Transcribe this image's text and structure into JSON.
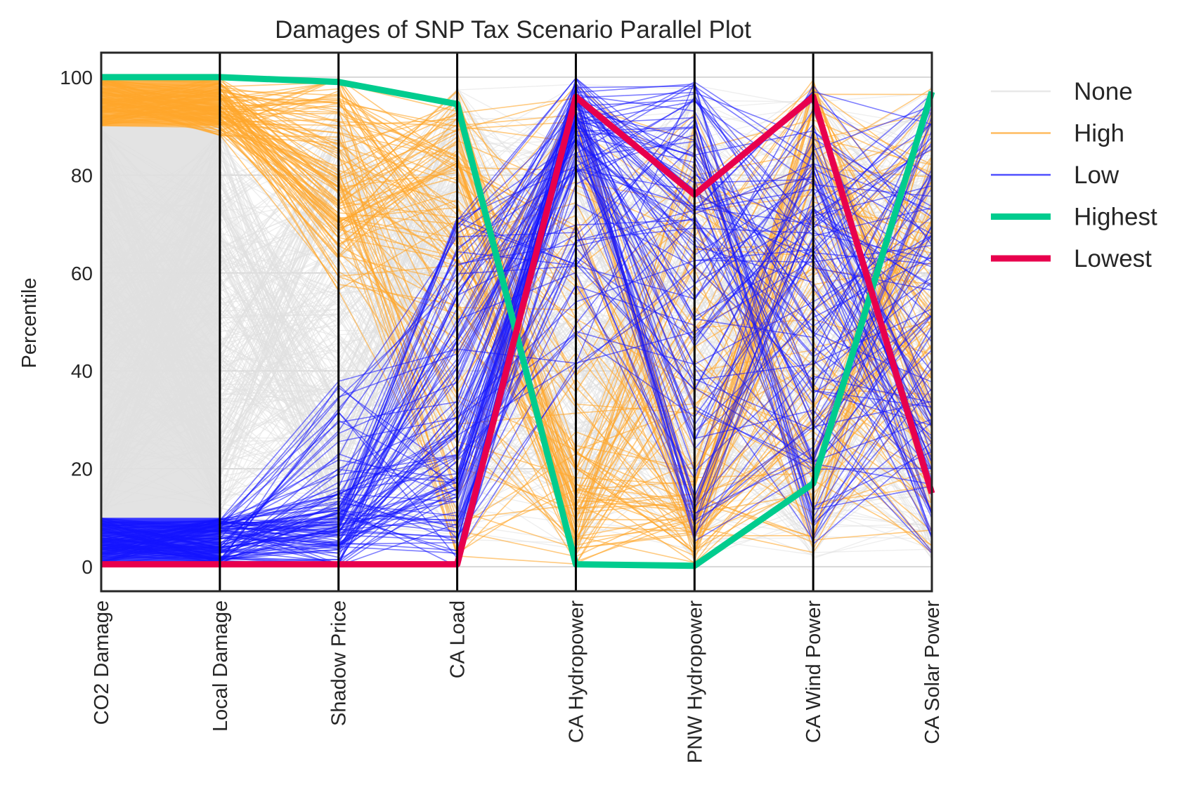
{
  "chart_data": {
    "type": "parallel-coordinates",
    "title": "Damages of SNP Tax Scenario Parallel Plot",
    "ylabel": "Percentile",
    "ylim": [
      -5,
      105
    ],
    "yticks": [
      0,
      20,
      40,
      60,
      80,
      100
    ],
    "grid": true,
    "legend_position": "outside-right",
    "axes": [
      "CO2 Damage",
      "Local Damage",
      "Shadow Price",
      "CA Load",
      "CA Hydropower",
      "PNW Hydropower",
      "CA Wind Power",
      "CA Solar Power"
    ],
    "legend": [
      {
        "label": "None",
        "color": "#e0e0e0",
        "style": "thin"
      },
      {
        "label": "High",
        "color": "#ffa62b",
        "style": "thin"
      },
      {
        "label": "Low",
        "color": "#1414ff",
        "style": "thin"
      },
      {
        "label": "Highest",
        "color": "#00cc8e",
        "style": "thick"
      },
      {
        "label": "Lowest",
        "color": "#e8004d",
        "style": "thick"
      }
    ],
    "series": [
      {
        "name": "Highest",
        "color": "#00cc8e",
        "values": [
          100,
          100,
          99,
          94.5,
          0.5,
          0.2,
          17,
          97
        ]
      },
      {
        "name": "Lowest",
        "color": "#e8004d",
        "values": [
          0.5,
          0.5,
          0.5,
          0.5,
          96,
          76,
          96,
          15
        ]
      }
    ],
    "groups": [
      {
        "name": "None",
        "color": "#e0e0e0",
        "co2_range": [
          10,
          90
        ]
      },
      {
        "name": "High",
        "color": "#ffa62b",
        "co2_range": [
          90,
          100
        ]
      },
      {
        "name": "Low",
        "color": "#1414ff",
        "co2_range": [
          0,
          10
        ]
      }
    ]
  }
}
